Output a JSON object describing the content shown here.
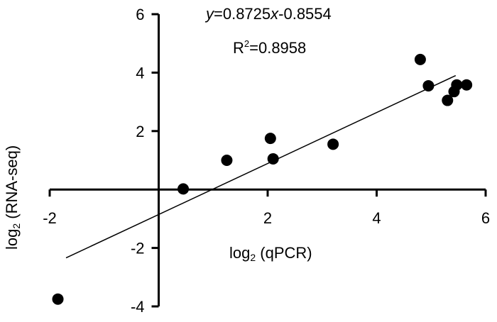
{
  "chart_data": {
    "type": "scatter",
    "title": "",
    "xlabel": {
      "prefix": "log",
      "subscript": "2",
      "suffix": " (qPCR)"
    },
    "ylabel": {
      "prefix": "log",
      "subscript": "2",
      "suffix": " (RNA-seq)"
    },
    "xlim": [
      -2,
      6
    ],
    "ylim": [
      -4,
      6
    ],
    "x_ticks": [
      -2,
      2,
      4,
      6
    ],
    "y_ticks": [
      6,
      4,
      2,
      -2,
      -4
    ],
    "grid": false,
    "points": [
      {
        "x": -1.85,
        "y": -3.75
      },
      {
        "x": 0.45,
        "y": 0.02
      },
      {
        "x": 1.25,
        "y": 1.0
      },
      {
        "x": 2.05,
        "y": 1.75
      },
      {
        "x": 2.1,
        "y": 1.05
      },
      {
        "x": 3.2,
        "y": 1.55
      },
      {
        "x": 4.8,
        "y": 4.45
      },
      {
        "x": 4.95,
        "y": 3.55
      },
      {
        "x": 5.3,
        "y": 3.05
      },
      {
        "x": 5.42,
        "y": 3.35
      },
      {
        "x": 5.47,
        "y": 3.58
      },
      {
        "x": 5.65,
        "y": 3.58
      }
    ],
    "regression": {
      "slope": 0.8725,
      "intercept": -0.8554,
      "x_range": [
        -1.7,
        5.45
      ]
    },
    "equation": {
      "y": "y",
      "mid": "=0.8725",
      "x": "x",
      "rest": "-0.8554"
    },
    "r2": {
      "base": "R",
      "exp": "2",
      "rest": "=0.8958"
    }
  }
}
